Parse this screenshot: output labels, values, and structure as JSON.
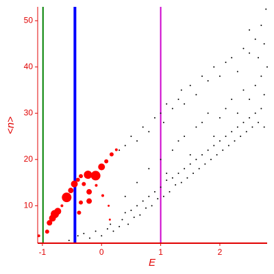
{
  "chart_data": {
    "type": "scatter",
    "x_label": "E",
    "y_label": "<n>",
    "xlim": [
      -1.08,
      2.8
    ],
    "ylim": [
      1.9,
      53
    ],
    "xticks": [
      -1,
      0,
      1,
      2
    ],
    "yticks": [
      10,
      20,
      30,
      40,
      50
    ],
    "axis_color": "#e00000",
    "vlines": [
      {
        "x": -0.99,
        "color": "#008000",
        "width": 2
      },
      {
        "x": -0.45,
        "color": "#0000ff",
        "width": 4
      },
      {
        "x": 1.0,
        "color": "#cc00cc",
        "width": 2
      }
    ],
    "series": [
      {
        "color": "#000000",
        "x": [
          -0.55,
          -0.4,
          -0.3,
          -0.2,
          -0.1,
          0,
          0.1,
          0.2,
          0.15,
          0.3,
          0.35,
          0.4,
          0.45,
          0.5,
          0.55,
          0.6,
          0.65,
          0.7,
          0.75,
          0.8,
          0.85,
          0.9,
          0.95,
          1.0,
          1.05,
          1.1,
          1.15,
          1.2,
          1.25,
          1.3,
          1.35,
          1.4,
          1.45,
          1.5,
          1.55,
          1.6,
          1.65,
          1.7,
          1.75,
          1.8,
          1.85,
          1.9,
          1.95,
          2.0,
          2.05,
          2.1,
          2.15,
          2.2,
          2.25,
          2.3,
          2.35,
          2.4,
          2.45,
          2.5,
          2.55,
          2.6,
          2.65,
          2.7,
          2.75,
          0.3,
          0.4,
          0.5,
          0.6,
          0.7,
          0.8,
          0.9,
          1.0,
          1.05,
          1.1,
          1.2,
          1.3,
          1.35,
          1.4,
          1.5,
          1.6,
          1.7,
          1.8,
          1.9,
          2.0,
          2.1,
          2.2,
          2.3,
          2.4,
          2.5,
          2.6,
          2.65,
          2.7,
          2.75,
          2.78,
          2.5,
          1.0,
          1.2,
          1.4,
          1.6,
          1.8,
          2.0,
          2.2,
          2.4,
          2.6,
          2.7,
          1.3,
          1.7,
          2.1,
          2.5,
          0.8,
          0.6,
          0.4,
          1.1,
          1.5,
          1.9,
          2.3,
          2.75,
          2.8
        ],
        "y": [
          2.5,
          3.5,
          4,
          3,
          4.5,
          3.5,
          5,
          4.5,
          6,
          5.5,
          7,
          8.5,
          6,
          9,
          7.5,
          10,
          8,
          11,
          9.5,
          12,
          10,
          13,
          11.5,
          14,
          12,
          15.5,
          13,
          16,
          14.5,
          17,
          15,
          18,
          16,
          19,
          17,
          20,
          18,
          21,
          19,
          22,
          20,
          23,
          21,
          24,
          22,
          25,
          23,
          26,
          24,
          27,
          25,
          28,
          26,
          29,
          27,
          30,
          28,
          31,
          27,
          22,
          23,
          25,
          24,
          27,
          26,
          29,
          30,
          28,
          32,
          31,
          33,
          35,
          32,
          36,
          34,
          38,
          37,
          40,
          38,
          41,
          42,
          39,
          44,
          43,
          46,
          42,
          49,
          45,
          52.5,
          48,
          20,
          22,
          25,
          27,
          30,
          29,
          33,
          35,
          36,
          38,
          24,
          28,
          31,
          33,
          18,
          15,
          12,
          17,
          21,
          25,
          30,
          34,
          40
        ]
      },
      {
        "color": "#ff0000",
        "x": [
          -1.06,
          -0.92,
          -0.88,
          -0.83,
          -0.79,
          -0.74,
          -0.59,
          -0.52,
          -0.46,
          -0.4,
          -0.35,
          -0.23,
          -0.1,
          0.0,
          0.08,
          0.17,
          0.25,
          -0.21,
          -0.21,
          -0.35,
          -0.38,
          -0.3,
          -0.09,
          0.02,
          0.12,
          0.14,
          -0.67
        ],
        "y": [
          3.5,
          4.4,
          6.3,
          7.3,
          8.2,
          8.8,
          11.8,
          13.3,
          14.7,
          15.6,
          16.4,
          16.7,
          16.5,
          18.4,
          19.6,
          21.1,
          22.1,
          13.0,
          11.0,
          10.7,
          8.5,
          14.7,
          14.4,
          12.2,
          10.0,
          7.0,
          10.0
        ],
        "sizes": [
          2,
          3,
          4,
          5,
          6,
          5,
          7,
          4,
          5,
          3,
          3,
          6,
          7,
          5,
          3,
          3,
          2,
          4,
          4,
          3,
          3,
          3,
          2,
          2,
          1.5,
          1.5,
          2
        ]
      }
    ]
  }
}
